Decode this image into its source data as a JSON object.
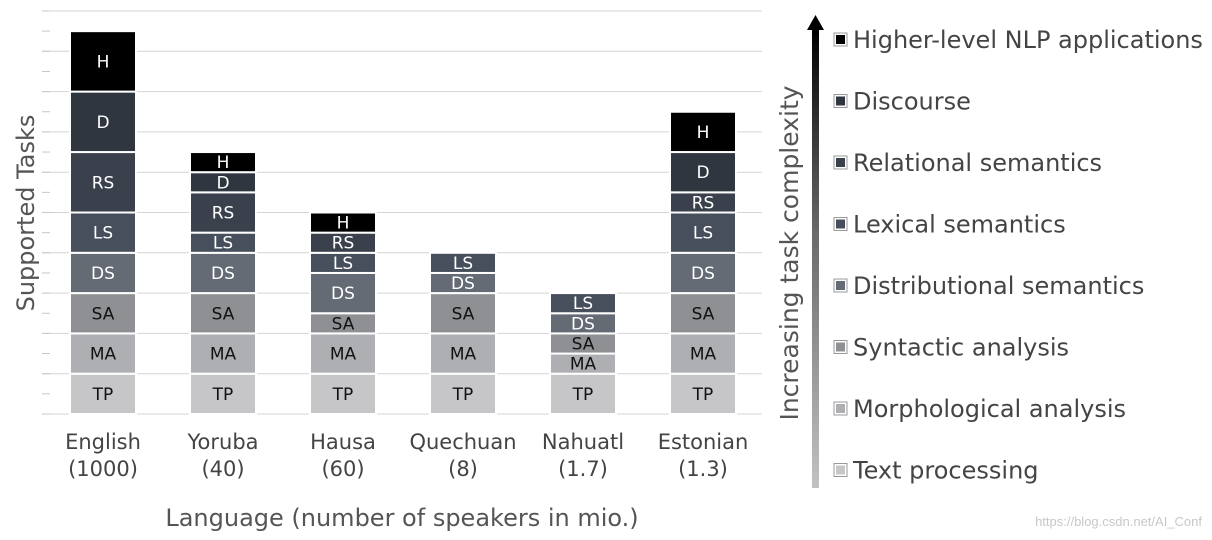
{
  "chart_data": {
    "type": "bar",
    "stacked": true,
    "ylabel": "Supported Tasks",
    "xlabel": "Language (number of speakers in mio.)",
    "ylim": [
      0,
      10
    ],
    "grid": true,
    "categories": [
      {
        "name": "English",
        "speakers": "(1000)"
      },
      {
        "name": "Yoruba",
        "speakers": "(40)"
      },
      {
        "name": "Hausa",
        "speakers": "(60)"
      },
      {
        "name": "Quechuan",
        "speakers": "(8)"
      },
      {
        "name": "Nahuatl",
        "speakers": "(1.7)"
      },
      {
        "name": "Estonian",
        "speakers": "(1.3)"
      }
    ],
    "task_levels": [
      {
        "key": "TP",
        "name": "Text processing",
        "color": "#c6c6c9"
      },
      {
        "key": "MA",
        "name": "Morphological analysis",
        "color": "#aeafb2"
      },
      {
        "key": "SA",
        "name": "Syntactic analysis",
        "color": "#8e9094"
      },
      {
        "key": "DS",
        "name": "Distributional semantics",
        "color": "#656b75"
      },
      {
        "key": "LS",
        "name": "Lexical semantics",
        "color": "#474f5c"
      },
      {
        "key": "RS",
        "name": "Relational semantics",
        "color": "#3a414d"
      },
      {
        "key": "D",
        "name": "Discourse",
        "color": "#30363f"
      },
      {
        "key": "H",
        "name": "Higher-level NLP applications",
        "color": "#000000"
      }
    ],
    "series": [
      {
        "name": "TP",
        "values": [
          1,
          1,
          1,
          1,
          1,
          1
        ]
      },
      {
        "name": "MA",
        "values": [
          1,
          1,
          1,
          1,
          0.5,
          1
        ]
      },
      {
        "name": "SA",
        "values": [
          1,
          1,
          0.5,
          1,
          0.5,
          1
        ]
      },
      {
        "name": "DS",
        "values": [
          1,
          1,
          1,
          0.5,
          0.5,
          1
        ]
      },
      {
        "name": "LS",
        "values": [
          1,
          0.5,
          0.5,
          0.5,
          0.5,
          1
        ]
      },
      {
        "name": "RS",
        "values": [
          1.5,
          1,
          0.5,
          0,
          0,
          0.5
        ]
      },
      {
        "name": "D",
        "values": [
          1.5,
          0.5,
          0,
          0,
          0,
          1
        ]
      },
      {
        "name": "H",
        "values": [
          1.5,
          0.5,
          0.5,
          0,
          0,
          1
        ]
      }
    ],
    "legend": {
      "arrow_label": "Increasing task complexity",
      "order": [
        "H",
        "D",
        "RS",
        "LS",
        "DS",
        "SA",
        "MA",
        "TP"
      ]
    }
  },
  "watermark": "https://blog.csdn.net/AI_Conf"
}
